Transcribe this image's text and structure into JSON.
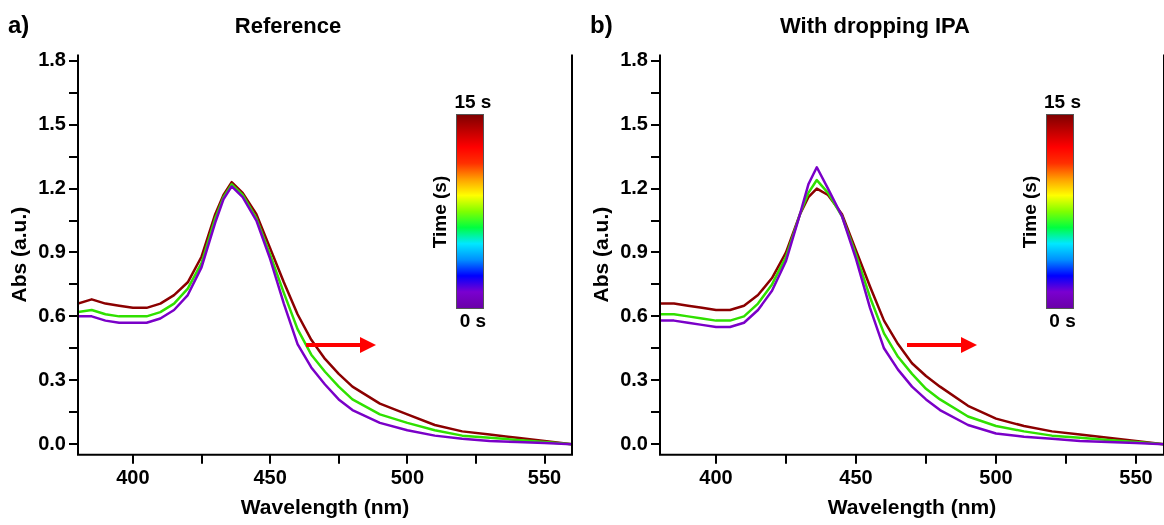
{
  "chart_data": [
    {
      "type": "line",
      "title": "Reference",
      "xlabel": "Wavelength (nm)",
      "ylabel": "Abs (a.u.)",
      "clabel": "Time (s)",
      "annotations": [
        "a)",
        "15 s",
        "0 s"
      ],
      "x": [
        380,
        385,
        390,
        395,
        400,
        405,
        410,
        415,
        420,
        425,
        430,
        433,
        436,
        440,
        445,
        450,
        455,
        460,
        465,
        470,
        475,
        480,
        490,
        500,
        510,
        520,
        530,
        540,
        550,
        560
      ],
      "xlim": [
        380,
        560
      ],
      "xticks": [
        400,
        {
          "value": 425,
          "label": null
        },
        450,
        {
          "value": 475,
          "label": null
        },
        500,
        {
          "value": 525,
          "label": null
        },
        550
      ],
      "ylim": [
        -0.05,
        1.83
      ],
      "yticks": [
        "0.0",
        {
          "value": 0.15,
          "label": null
        },
        {
          "value": 0.3,
          "label": "0.3"
        },
        {
          "value": 0.45,
          "label": null
        },
        {
          "value": 0.6,
          "label": "0.6"
        },
        {
          "value": 0.75,
          "label": null
        },
        {
          "value": 0.9,
          "label": "0.9"
        },
        {
          "value": 1.05,
          "label": null
        },
        {
          "value": 1.2,
          "label": "1.2"
        },
        {
          "value": 1.35,
          "label": null
        },
        {
          "value": 1.5,
          "label": "1.5"
        },
        {
          "value": 1.65,
          "label": null
        },
        {
          "value": 1.8,
          "label": "1.8"
        }
      ],
      "series": [
        {
          "color": "#7a00c8",
          "values": [
            0.6,
            0.6,
            0.58,
            0.57,
            0.57,
            0.57,
            0.59,
            0.63,
            0.7,
            0.83,
            1.04,
            1.15,
            1.21,
            1.16,
            1.05,
            0.87,
            0.66,
            0.47,
            0.36,
            0.28,
            0.21,
            0.16,
            0.1,
            0.065,
            0.04,
            0.025,
            0.015,
            0.01,
            0.005,
            0.0
          ]
        },
        {
          "color": "#30e000",
          "values": [
            0.62,
            0.63,
            0.61,
            0.6,
            0.6,
            0.6,
            0.62,
            0.66,
            0.73,
            0.85,
            1.06,
            1.16,
            1.22,
            1.17,
            1.06,
            0.89,
            0.71,
            0.54,
            0.42,
            0.34,
            0.27,
            0.21,
            0.14,
            0.1,
            0.065,
            0.04,
            0.03,
            0.02,
            0.01,
            0.0
          ]
        },
        {
          "color": "#8b0000",
          "values": [
            0.66,
            0.68,
            0.66,
            0.65,
            0.64,
            0.64,
            0.66,
            0.7,
            0.76,
            0.88,
            1.08,
            1.17,
            1.23,
            1.18,
            1.08,
            0.92,
            0.76,
            0.61,
            0.49,
            0.4,
            0.33,
            0.27,
            0.19,
            0.14,
            0.09,
            0.06,
            0.045,
            0.03,
            0.015,
            0.0
          ]
        }
      ]
    },
    {
      "type": "line",
      "title": "With dropping IPA",
      "xlabel": "Wavelength (nm)",
      "ylabel": "Abs (a.u.)",
      "clabel": "Time (s)",
      "annotations": [
        "b)",
        "15 s",
        "0 s"
      ],
      "x": [
        380,
        385,
        390,
        395,
        400,
        405,
        410,
        415,
        420,
        425,
        430,
        433,
        436,
        440,
        445,
        450,
        455,
        460,
        465,
        470,
        475,
        480,
        490,
        500,
        510,
        520,
        530,
        540,
        550,
        560
      ],
      "xlim": [
        380,
        560
      ],
      "xticks": [
        400,
        {
          "value": 425,
          "label": null
        },
        450,
        {
          "value": 475,
          "label": null
        },
        500,
        {
          "value": 525,
          "label": null
        },
        550
      ],
      "ylim": [
        -0.05,
        1.83
      ],
      "yticks": [
        {
          "value": 0,
          "label": "0.0"
        },
        {
          "value": 0.15,
          "label": null
        },
        {
          "value": 0.3,
          "label": "0.3"
        },
        {
          "value": 0.45,
          "label": null
        },
        {
          "value": 0.6,
          "label": "0.6"
        },
        {
          "value": 0.75,
          "label": null
        },
        {
          "value": 0.9,
          "label": "0.9"
        },
        {
          "value": 1.05,
          "label": null
        },
        {
          "value": 1.2,
          "label": "1.2"
        },
        {
          "value": 1.35,
          "label": null
        },
        {
          "value": 1.5,
          "label": "1.5"
        },
        {
          "value": 1.65,
          "label": null
        },
        {
          "value": 1.8,
          "label": "1.8"
        }
      ],
      "series": [
        {
          "color": "#7a00c8",
          "values": [
            0.58,
            0.58,
            0.57,
            0.56,
            0.55,
            0.55,
            0.57,
            0.63,
            0.72,
            0.86,
            1.08,
            1.22,
            1.3,
            1.2,
            1.07,
            0.87,
            0.64,
            0.45,
            0.35,
            0.27,
            0.21,
            0.16,
            0.09,
            0.05,
            0.035,
            0.025,
            0.015,
            0.01,
            0.005,
            0.0
          ]
        },
        {
          "color": "#30e000",
          "values": [
            0.61,
            0.61,
            0.6,
            0.59,
            0.58,
            0.58,
            0.6,
            0.66,
            0.75,
            0.88,
            1.08,
            1.18,
            1.24,
            1.18,
            1.07,
            0.89,
            0.69,
            0.52,
            0.41,
            0.33,
            0.26,
            0.21,
            0.13,
            0.085,
            0.06,
            0.04,
            0.03,
            0.02,
            0.01,
            0.0
          ]
        },
        {
          "color": "#8b0000",
          "values": [
            0.66,
            0.66,
            0.65,
            0.64,
            0.63,
            0.63,
            0.65,
            0.7,
            0.78,
            0.9,
            1.08,
            1.16,
            1.2,
            1.17,
            1.08,
            0.91,
            0.74,
            0.58,
            0.47,
            0.38,
            0.32,
            0.27,
            0.18,
            0.12,
            0.085,
            0.06,
            0.045,
            0.03,
            0.015,
            0.0
          ]
        }
      ]
    }
  ]
}
